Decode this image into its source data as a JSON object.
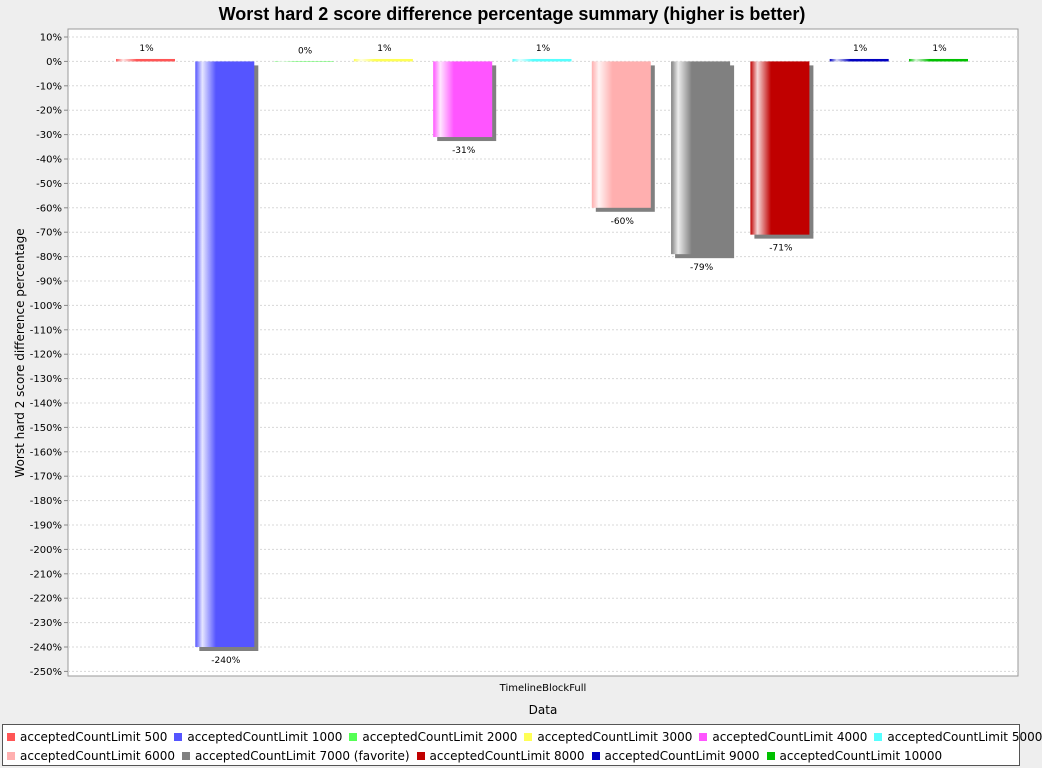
{
  "chart_data": {
    "type": "bar",
    "title": "Worst hard 2 score difference percentage summary (higher is better)",
    "xlabel": "Data",
    "ylabel": "Worst hard 2 score difference percentage",
    "categories": [
      "TimelineBlockFull"
    ],
    "ylim": [
      -250,
      10
    ],
    "ytick_step": 10,
    "y_tick_suffix": "%",
    "grid": true,
    "legend_position": "bottom",
    "series": [
      {
        "name": "acceptedCountLimit 500",
        "values": [
          1
        ],
        "label": "1%",
        "color": "#ff5555"
      },
      {
        "name": "acceptedCountLimit 1000",
        "values": [
          -240
        ],
        "label": "-240%",
        "color": "#5555ff"
      },
      {
        "name": "acceptedCountLimit 2000",
        "values": [
          0
        ],
        "label": "0%",
        "color": "#55ff55"
      },
      {
        "name": "acceptedCountLimit 3000",
        "values": [
          1
        ],
        "label": "1%",
        "color": "#ffff55"
      },
      {
        "name": "acceptedCountLimit 4000",
        "values": [
          -31
        ],
        "label": "-31%",
        "color": "#ff55ff"
      },
      {
        "name": "acceptedCountLimit 5000",
        "values": [
          1
        ],
        "label": "1%",
        "color": "#55ffff"
      },
      {
        "name": "acceptedCountLimit 6000",
        "values": [
          -60
        ],
        "label": "-60%",
        "color": "#ffafaf"
      },
      {
        "name": "acceptedCountLimit 7000 (favorite)",
        "values": [
          -79
        ],
        "label": "-79%",
        "color": "#808080"
      },
      {
        "name": "acceptedCountLimit 8000",
        "values": [
          -71
        ],
        "label": "-71%",
        "color": "#c00000"
      },
      {
        "name": "acceptedCountLimit 9000",
        "values": [
          1
        ],
        "label": "1%",
        "color": "#0000c0"
      },
      {
        "name": "acceptedCountLimit 10000",
        "values": [
          1
        ],
        "label": "1%",
        "color": "#00c000"
      }
    ]
  }
}
